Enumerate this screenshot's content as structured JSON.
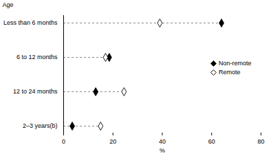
{
  "chart_data": {
    "type": "dot",
    "y_label": "Age",
    "x_label": "%",
    "categories": [
      "Less than 6 months",
      "6 to 12 months",
      "12 to 24 months",
      "2–3 years(b)"
    ],
    "series": [
      {
        "name": "Non-remote",
        "color": "#000000",
        "marker": "diamond",
        "values": [
          64,
          18.5,
          13,
          3.5
        ]
      },
      {
        "name": "Remote",
        "color": "#000000",
        "marker": "open-diamond",
        "values": [
          39,
          17,
          24.5,
          15
        ]
      }
    ],
    "xlim": [
      0,
      80
    ],
    "xticks": [
      0,
      20,
      40,
      60,
      80
    ],
    "orientation": "horizontal",
    "legend": "right"
  }
}
